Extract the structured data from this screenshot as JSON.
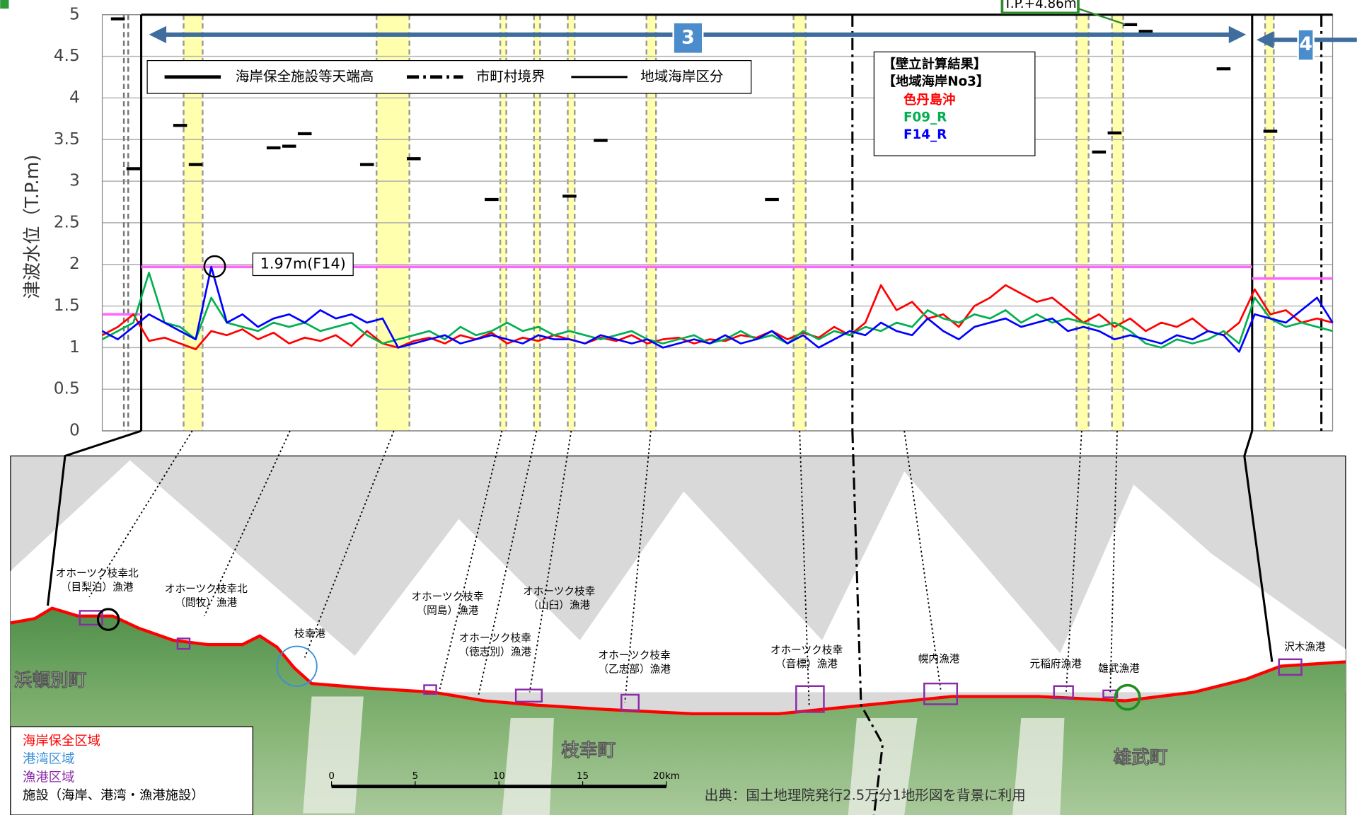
{
  "chart_data": {
    "type": "line",
    "y_label": "津波水位（T.P.m)",
    "ylim": [
      0,
      5
    ],
    "yticks": [
      0,
      0.5,
      1,
      1.5,
      2,
      2.5,
      3,
      3.5,
      4,
      4.5,
      5
    ],
    "grid": true,
    "series": [
      {
        "name": "色丹島沖",
        "color": "#ff0000",
        "values": [
          1.15,
          1.25,
          1.4,
          1.08,
          1.12,
          1.05,
          0.98,
          1.2,
          1.15,
          1.22,
          1.1,
          1.18,
          1.05,
          1.12,
          1.08,
          1.15,
          1.02,
          1.2,
          1.05,
          1.0,
          1.08,
          1.12,
          1.05,
          1.15,
          1.1,
          1.18,
          1.05,
          1.12,
          1.08,
          1.15,
          1.1,
          1.05,
          1.12,
          1.08,
          1.15,
          1.05,
          1.1,
          1.12,
          1.05,
          1.1,
          1.08,
          1.15,
          1.12,
          1.2,
          1.1,
          1.18,
          1.12,
          1.25,
          1.15,
          1.3,
          1.75,
          1.45,
          1.55,
          1.35,
          1.4,
          1.25,
          1.5,
          1.6,
          1.75,
          1.65,
          1.55,
          1.6,
          1.45,
          1.3,
          1.4,
          1.25,
          1.35,
          1.2,
          1.3,
          1.25,
          1.35,
          1.2,
          1.15,
          1.3,
          1.7,
          1.4,
          1.45,
          1.3,
          1.35,
          1.3
        ]
      },
      {
        "name": "F09_R",
        "color": "#00b050",
        "values": [
          1.1,
          1.2,
          1.3,
          1.9,
          1.3,
          1.25,
          1.1,
          1.6,
          1.3,
          1.25,
          1.2,
          1.3,
          1.25,
          1.3,
          1.2,
          1.25,
          1.3,
          1.15,
          1.05,
          1.1,
          1.15,
          1.2,
          1.1,
          1.25,
          1.15,
          1.2,
          1.3,
          1.2,
          1.25,
          1.15,
          1.2,
          1.15,
          1.1,
          1.15,
          1.2,
          1.1,
          1.05,
          1.1,
          1.15,
          1.05,
          1.1,
          1.2,
          1.1,
          1.15,
          1.05,
          1.2,
          1.1,
          1.2,
          1.15,
          1.25,
          1.2,
          1.3,
          1.25,
          1.45,
          1.35,
          1.3,
          1.4,
          1.35,
          1.45,
          1.3,
          1.4,
          1.3,
          1.35,
          1.3,
          1.25,
          1.3,
          1.2,
          1.05,
          1.0,
          1.1,
          1.05,
          1.1,
          1.2,
          1.05,
          1.6,
          1.35,
          1.25,
          1.3,
          1.25,
          1.2
        ]
      },
      {
        "name": "F14_R",
        "color": "#0000ff",
        "values": [
          1.2,
          1.1,
          1.25,
          1.4,
          1.3,
          1.2,
          1.1,
          1.97,
          1.3,
          1.4,
          1.25,
          1.35,
          1.4,
          1.3,
          1.45,
          1.35,
          1.4,
          1.3,
          1.35,
          1.0,
          1.05,
          1.1,
          1.15,
          1.05,
          1.1,
          1.15,
          1.1,
          1.05,
          1.15,
          1.1,
          1.1,
          1.05,
          1.15,
          1.1,
          1.05,
          1.1,
          1.0,
          1.05,
          1.1,
          1.05,
          1.15,
          1.05,
          1.1,
          1.2,
          1.05,
          1.15,
          1.0,
          1.1,
          1.2,
          1.15,
          1.3,
          1.2,
          1.15,
          1.35,
          1.2,
          1.1,
          1.25,
          1.3,
          1.35,
          1.25,
          1.3,
          1.35,
          1.2,
          1.25,
          1.2,
          1.1,
          1.15,
          1.1,
          1.05,
          1.15,
          1.1,
          1.2,
          1.15,
          0.95,
          1.4,
          1.35,
          1.3,
          1.45,
          1.6,
          1.3
        ]
      },
      {
        "name": "海岸保全施設等天端高",
        "color": "#000000",
        "style": "dash",
        "values": [
          null,
          4.95,
          3.15,
          null,
          null,
          3.67,
          3.2,
          null,
          null,
          null,
          null,
          3.4,
          3.42,
          3.57,
          null,
          null,
          null,
          3.2,
          null,
          null,
          3.27,
          null,
          null,
          null,
          null,
          2.78,
          null,
          null,
          null,
          null,
          2.82,
          null,
          3.49,
          null,
          null,
          null,
          null,
          null,
          null,
          null,
          null,
          null,
          null,
          2.78,
          null,
          null,
          null,
          null,
          null,
          null,
          null,
          null,
          null,
          null,
          null,
          null,
          null,
          null,
          null,
          null,
          null,
          null,
          null,
          null,
          3.35,
          3.58,
          4.88,
          4.8,
          null,
          null,
          null,
          null,
          4.35,
          null,
          null,
          3.6,
          null,
          null,
          null,
          null
        ]
      }
    ],
    "legend_lines": [
      "市町村境界",
      "地域海岸区分"
    ],
    "legend_box_title": [
      "【壁立計算結果】",
      "【地域海岸No3】"
    ],
    "reference_color": "#ff66ff",
    "reference_lines": [
      {
        "value": 1.4
      },
      {
        "value": 1.97,
        "label": "1.97m(F14)"
      },
      {
        "value": 1.83
      }
    ],
    "annotations": {
      "tp": "T.P.+4.86m",
      "zones": [
        "3",
        "4"
      ]
    }
  },
  "map": {
    "towns": [
      "浜頓別町",
      "枝幸町",
      "雄武町"
    ],
    "ports": [
      {
        "lines": [
          "オホーツク枝幸北",
          "（目梨泊）漁港"
        ]
      },
      {
        "lines": [
          "オホーツク枝幸北",
          "（問牧）漁港"
        ]
      },
      {
        "lines": [
          "枝幸港"
        ]
      },
      {
        "lines": [
          "オホーツク枝幸",
          "（岡島）漁港"
        ]
      },
      {
        "lines": [
          "オホーツク枝幸",
          "（徳志別）漁港"
        ]
      },
      {
        "lines": [
          "オホーツク枝幸",
          "（山臼）漁港"
        ]
      },
      {
        "lines": [
          "オホーツク枝幸",
          "（乙忠部）漁港"
        ]
      },
      {
        "lines": [
          "オホーツク枝幸",
          "（音標）漁港"
        ]
      },
      {
        "lines": [
          "幌内漁港"
        ]
      },
      {
        "lines": [
          "元稲府漁港"
        ]
      },
      {
        "lines": [
          "雄武漁港"
        ]
      },
      {
        "lines": [
          "沢木漁港"
        ]
      }
    ],
    "legend": [
      "海岸保全区域",
      "港湾区域",
      "漁港区域",
      "施設（海岸、港湾・漁港施設）"
    ],
    "scale": [
      0,
      5,
      10,
      15,
      {
        "value": 20,
        "label": "20km"
      }
    ],
    "source": "出典：国土地理院発行2.5万分1地形図を背景に利用"
  }
}
